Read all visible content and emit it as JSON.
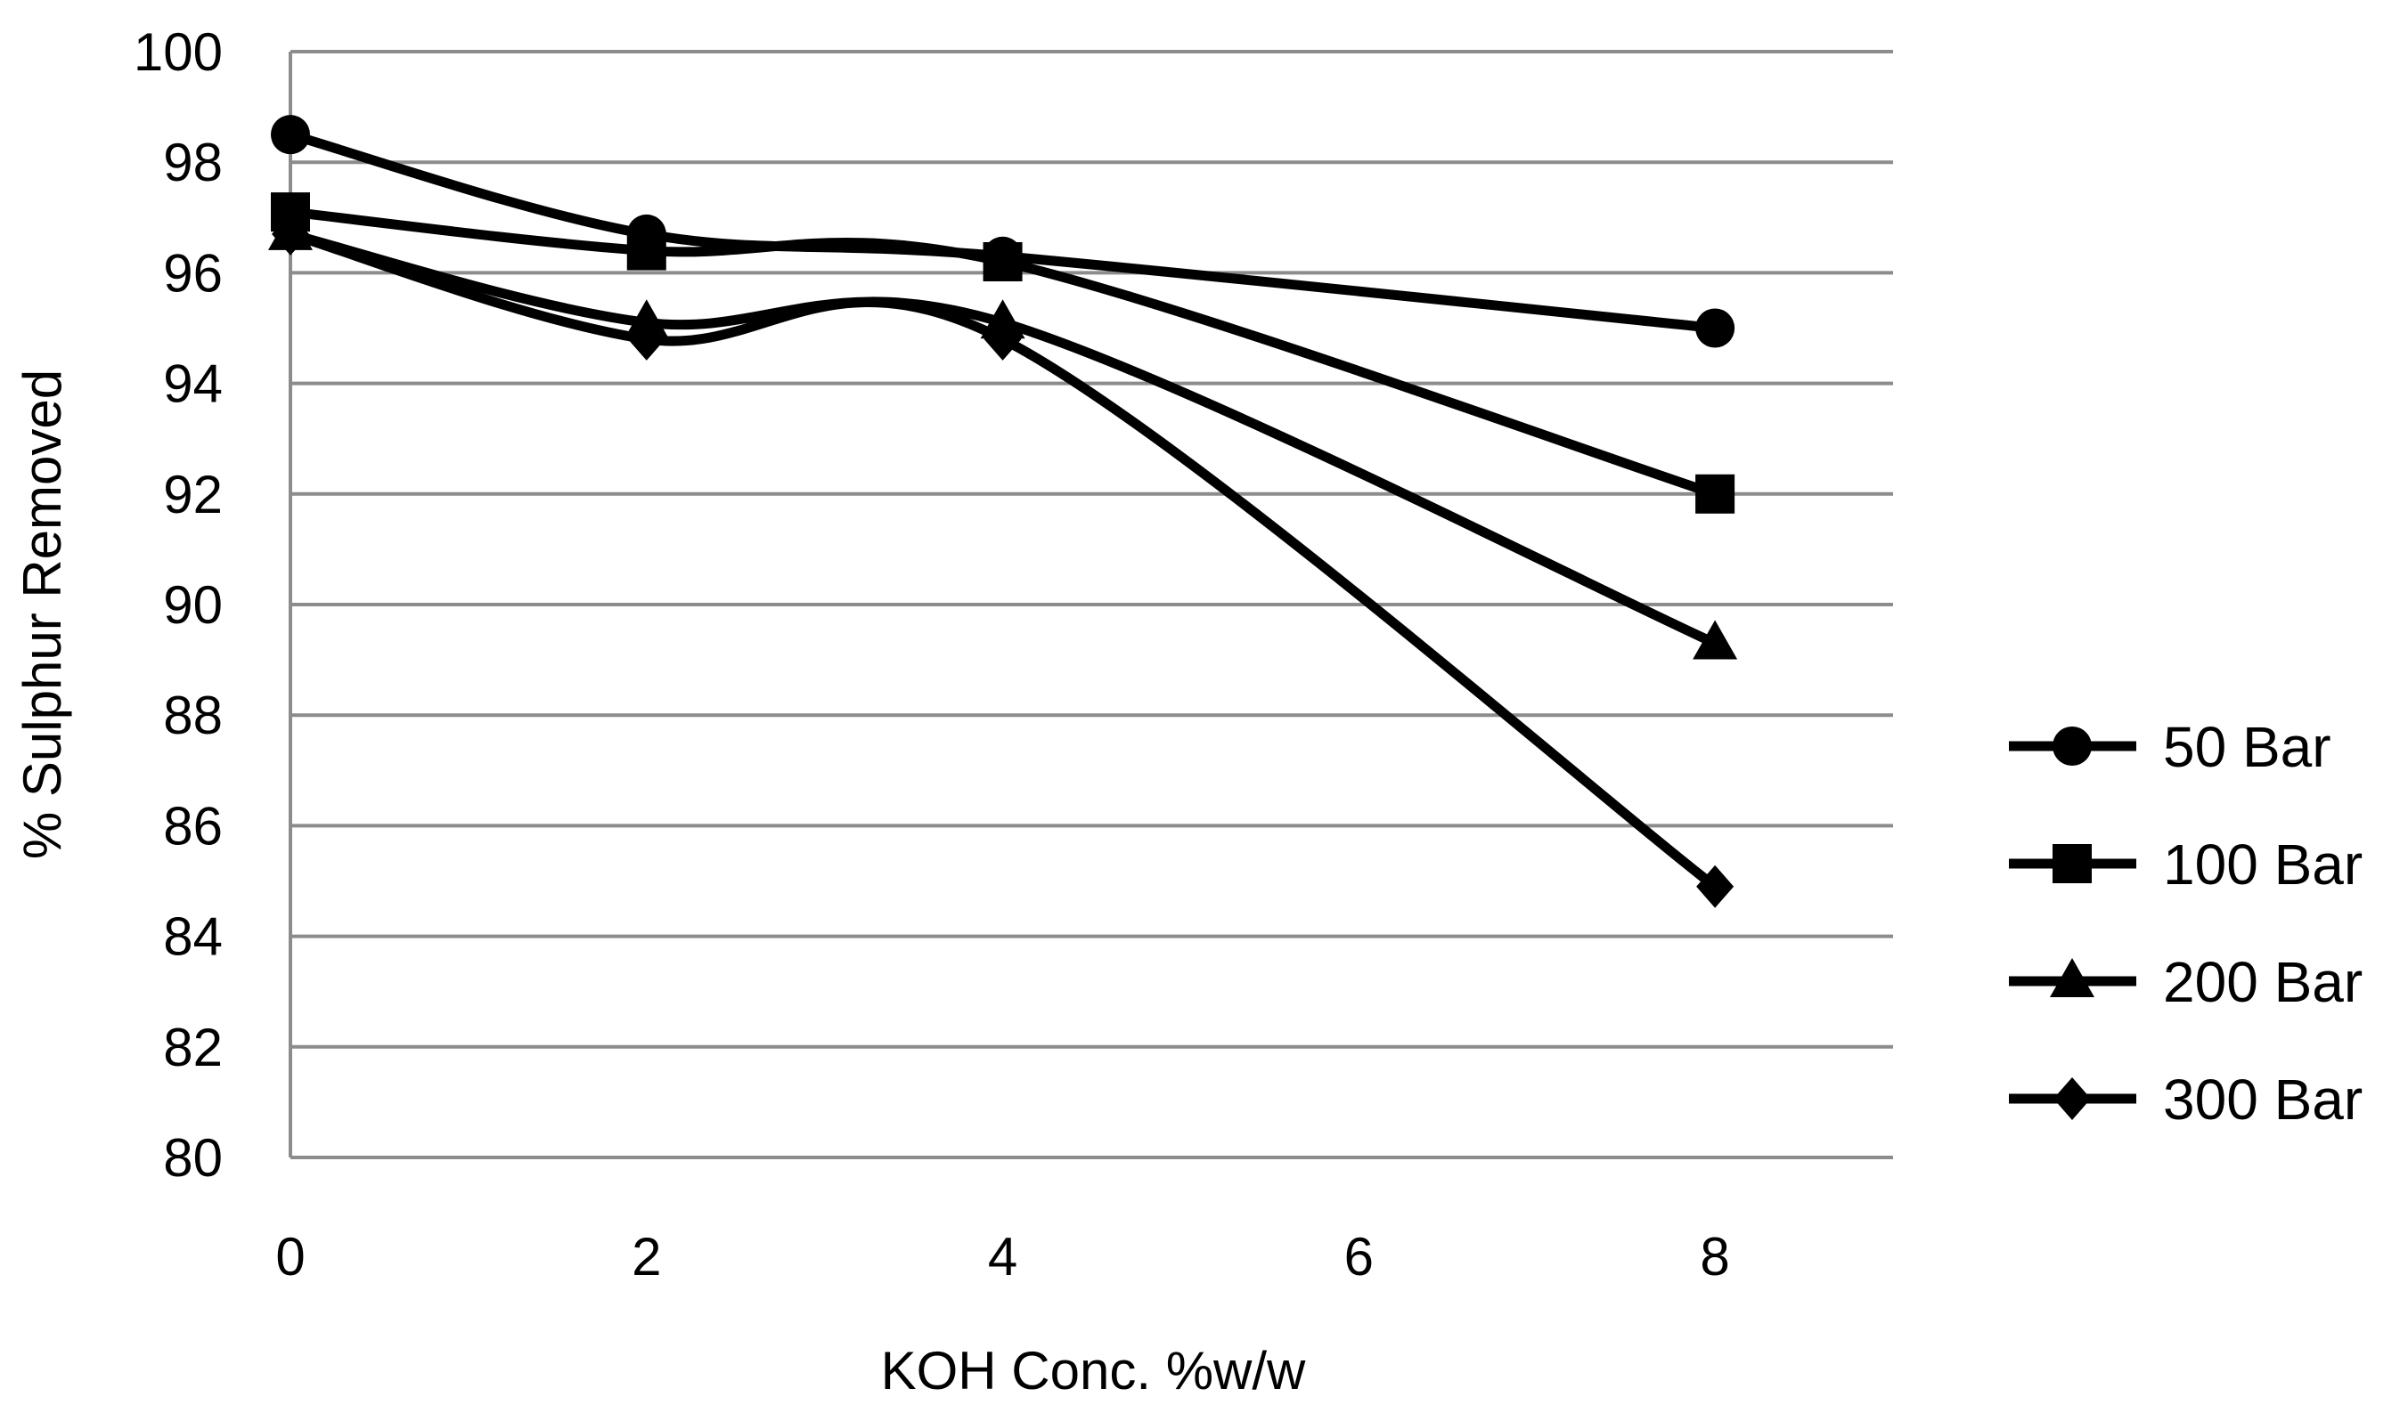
{
  "chart_data": {
    "type": "line",
    "title": "",
    "xlabel": "KOH Conc. %w/w",
    "ylabel": "% Sulphur Removed",
    "xlim": [
      0,
      9
    ],
    "ylim": [
      80,
      100
    ],
    "xticks": [
      0,
      2,
      4,
      6,
      8
    ],
    "yticks": [
      80,
      82,
      84,
      86,
      88,
      90,
      92,
      94,
      96,
      98,
      100
    ],
    "grid": "horizontal",
    "smooth": true,
    "legend_position": "right",
    "x": [
      0,
      2,
      4,
      8
    ],
    "series": [
      {
        "name": "50 Bar",
        "marker": "circle",
        "values": [
          98.5,
          96.7,
          96.3,
          95.0
        ]
      },
      {
        "name": "100 Bar",
        "marker": "square",
        "values": [
          97.1,
          96.4,
          96.2,
          92.0
        ]
      },
      {
        "name": "200 Bar",
        "marker": "triangle",
        "values": [
          96.7,
          95.1,
          95.1,
          89.3
        ]
      },
      {
        "name": "300 Bar",
        "marker": "diamond",
        "values": [
          96.7,
          94.8,
          94.8,
          84.9
        ]
      }
    ],
    "colors": {
      "line": "#000000",
      "grid": "#8c8c8c"
    }
  }
}
